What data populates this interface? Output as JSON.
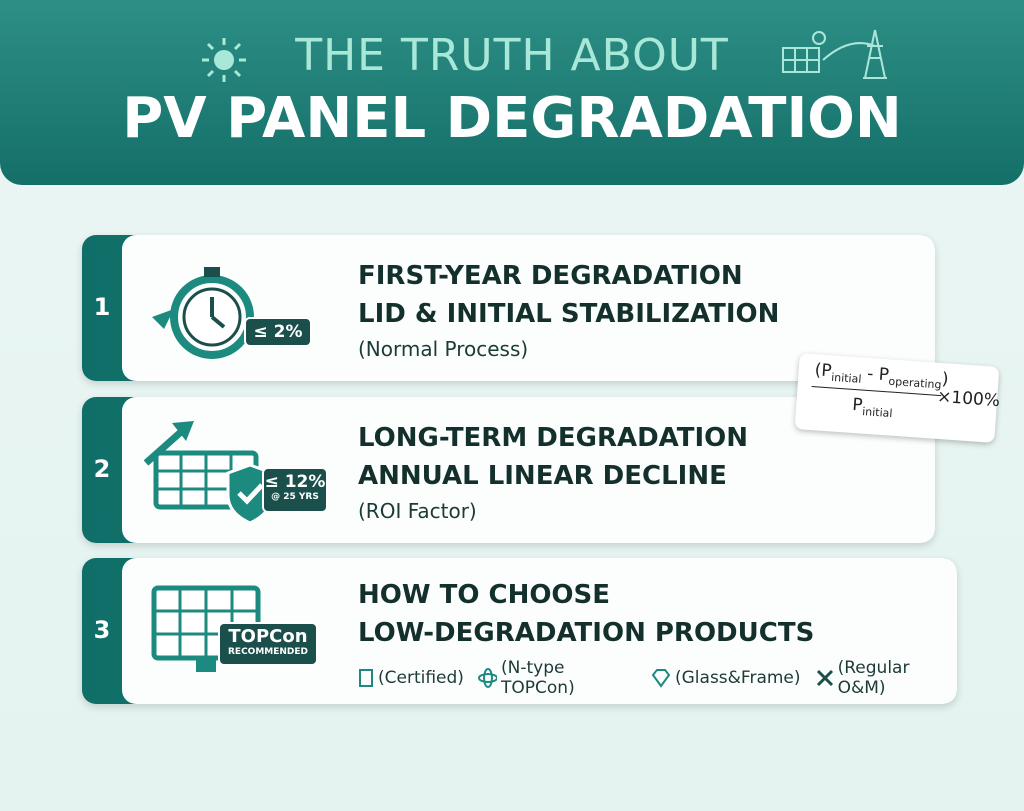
{
  "header": {
    "title_top": "THE TRUTH ABOUT",
    "title_main": "PV PANEL DEGRADATION"
  },
  "cards": [
    {
      "number": "1",
      "badge": "≤ 2%",
      "heading": [
        "FIRST-YEAR DEGRADATION",
        "LID & INITIAL STABILIZATION"
      ],
      "note": "(Normal Process)"
    },
    {
      "number": "2",
      "badge": "≤ 12%",
      "badge_sub": "@ 25 YRS",
      "heading": [
        "LONG-TERM DEGRADATION",
        "ANNUAL LINEAR DECLINE"
      ],
      "note": "(ROI Factor)"
    },
    {
      "number": "3",
      "badge": "TOPCon",
      "badge_sub": "RECOMMENDED",
      "heading": [
        "HOW TO CHOOSE",
        "LOW-DEGRADATION PRODUCTS"
      ],
      "tags": [
        "(Certified)",
        "(N-type TOPCon)",
        "(Glass&Frame)",
        "(Regular O&M)"
      ]
    }
  ],
  "formula": {
    "open": "(",
    "p1": "P",
    "s1": "initial",
    "minus": " - ",
    "p2": "P",
    "s2": "operating",
    "close": ")",
    "den_p": "P",
    "den_s": "initial",
    "factor": "×100%"
  }
}
